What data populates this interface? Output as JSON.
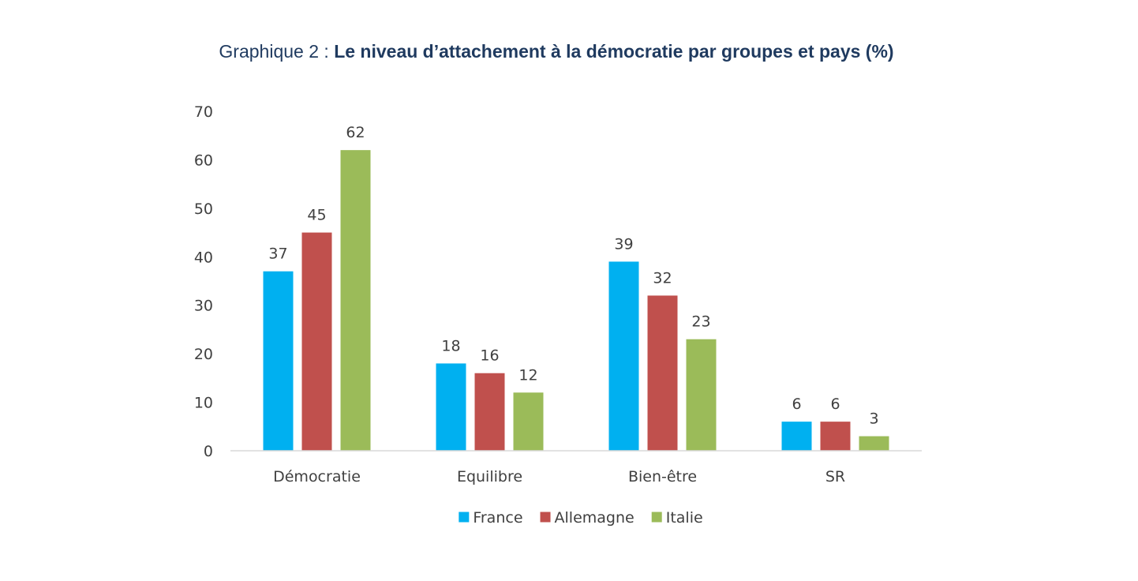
{
  "chart_data": {
    "type": "bar",
    "title_prefix": "Graphique 2 : ",
    "title": "Le niveau d’attachement à la démocratie par groupes et pays (%)",
    "categories": [
      "Démocratie",
      "Equilibre",
      "Bien-être",
      "SR"
    ],
    "series": [
      {
        "name": "France",
        "color": "#00b0f0",
        "values": [
          37,
          18,
          39,
          6
        ]
      },
      {
        "name": "Allemagne",
        "color": "#c0504d",
        "values": [
          45,
          16,
          32,
          6
        ]
      },
      {
        "name": "Italie",
        "color": "#9bbb59",
        "values": [
          62,
          12,
          23,
          3
        ]
      }
    ],
    "ylim": [
      0,
      70
    ],
    "yticks": [
      0,
      10,
      20,
      30,
      40,
      50,
      60,
      70
    ],
    "xlabel": "",
    "ylabel": "",
    "grid": false,
    "legend_position": "bottom"
  }
}
